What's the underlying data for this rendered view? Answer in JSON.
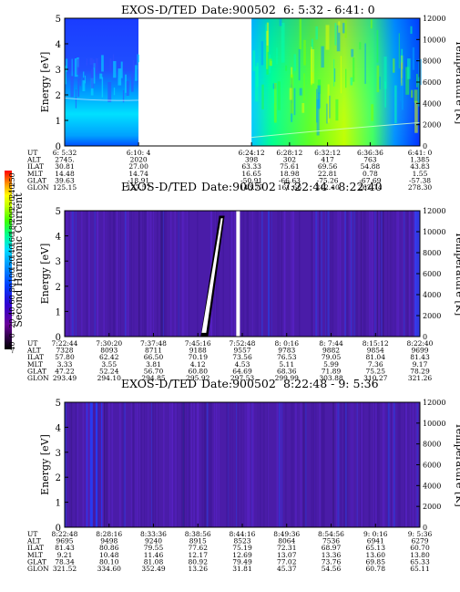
{
  "chart_data": {
    "type": "heatmap",
    "colorbar": {
      "label": "Second Harmonic Current",
      "ticks": [
        "-40",
        "0",
        "20",
        "40",
        "60",
        "80",
        "100",
        "120",
        "140",
        "160",
        "180",
        "200",
        "220",
        "240",
        "250"
      ]
    },
    "panels": [
      {
        "title": "EXOS-D/TED",
        "date": "Date:900502",
        "time_range": "6: 5:32 - 6:41: 0",
        "ylabel": "Energy [eV]",
        "y2label": "Temperature [K]",
        "ylim": [
          0,
          5
        ],
        "y2lim": [
          0,
          12000
        ],
        "yticks": [
          "0",
          "1",
          "2",
          "3",
          "4",
          "5"
        ],
        "y2ticks": [
          "0",
          "2000",
          "4000",
          "6000",
          "8000",
          "10000",
          "12000"
        ],
        "data_gap": {
          "from": "6:10: 4",
          "to": "6:24:12"
        },
        "orbit_labels": [
          "UT",
          "ALT",
          "ILAT",
          "MLT",
          "GLAT",
          "GLON"
        ],
        "orbit_columns": [
          {
            "UT": "6: 5:32",
            "ALT": "2745.",
            "ILAT": "30.81",
            "MLT": "14.48",
            "GLAT": "39.63",
            "GLON": "125.15"
          },
          {
            "UT": "6:10: 4",
            "ALT": "2020",
            "ILAT": "27.00",
            "MLT": "14.74",
            "GLAT": "-18.91",
            "GLON": "127.57"
          },
          {
            "UT": "6:24:12",
            "ALT": "398",
            "ILAT": "63.33",
            "MLT": "16.65",
            "GLAT": "-50.91",
            "GLON": "143.77"
          },
          {
            "UT": "6:28:12",
            "ALT": "302",
            "ILAT": "75.61",
            "MLT": "18.98",
            "GLAT": "-66.63",
            "GLON": "161.66"
          },
          {
            "UT": "6:32:12",
            "ALT": "417",
            "ILAT": "69.56",
            "MLT": "22.81",
            "GLAT": "-75.26",
            "GLON": "212.40"
          },
          {
            "UT": "6:36:36",
            "ALT": "763",
            "ILAT": "54.88",
            "MLT": "0.78",
            "GLAT": "-67.69",
            "GLON": "262.74"
          },
          {
            "UT": "6:41: 0",
            "ALT": "1,385",
            "ILAT": "43.83",
            "MLT": "1.55",
            "GLAT": "-57.38",
            "GLON": "278.30"
          }
        ]
      },
      {
        "title": "EXOS-D/TED",
        "date": "Date:900502",
        "time_range": "7:22:44 - 8:22:40",
        "ylabel": "Energy [eV]",
        "y2label": "Temperature [K]",
        "ylim": [
          0,
          5
        ],
        "y2lim": [
          0,
          12000
        ],
        "yticks": [
          "0",
          "1",
          "2",
          "3",
          "4",
          "5"
        ],
        "y2ticks": [
          "0",
          "2000",
          "4000",
          "6000",
          "8000",
          "10000",
          "12000"
        ],
        "orbit_labels": [
          "UT",
          "ALT",
          "ILAT",
          "MLT",
          "GLAT",
          "GLON"
        ],
        "orbit_columns": [
          {
            "UT": "7:22:44",
            "ALT": "7328",
            "ILAT": "57.80",
            "MLT": "3.33",
            "GLAT": "47.22",
            "GLON": "293.49"
          },
          {
            "UT": "7:30:20",
            "ALT": "8093",
            "ILAT": "62.42",
            "MLT": "3.55",
            "GLAT": "52.24",
            "GLON": "294.10"
          },
          {
            "UT": "7:37:48",
            "ALT": "8711",
            "ILAT": "66.50",
            "MLT": "3.81",
            "GLAT": "56.70",
            "GLON": "294.85"
          },
          {
            "UT": "7:45:16",
            "ALT": "9188",
            "ILAT": "70.19",
            "MLT": "4.12",
            "GLAT": "60.80",
            "GLON": "295.92"
          },
          {
            "UT": "7:52:48",
            "ALT": "9557",
            "ILAT": "73.56",
            "MLT": "4.53",
            "GLAT": "64.69",
            "GLON": "297.53"
          },
          {
            "UT": "8: 0:16",
            "ALT": "9783",
            "ILAT": "76.53",
            "MLT": "5.11",
            "GLAT": "68.36",
            "GLON": "299.99"
          },
          {
            "UT": "8: 7:44",
            "ALT": "9882",
            "ILAT": "79.05",
            "MLT": "5.99",
            "GLAT": "71.89",
            "GLON": "303.88"
          },
          {
            "UT": "8:15:12",
            "ALT": "9854",
            "ILAT": "81.04",
            "MLT": "7.36",
            "GLAT": "75.25",
            "GLON": "310.27"
          },
          {
            "UT": "8:22:40",
            "ALT": "9699",
            "ILAT": "81.43",
            "MLT": "9.17",
            "GLAT": "78.29",
            "GLON": "321.26"
          }
        ]
      },
      {
        "title": "EXOS-D/TED",
        "date": "Date:900502",
        "time_range": "8:22:48 - 9: 5:36",
        "ylabel": "Energy [eV]",
        "y2label": "Temperature [K]",
        "ylim": [
          0,
          5
        ],
        "y2lim": [
          0,
          12000
        ],
        "yticks": [
          "0",
          "1",
          "2",
          "3",
          "4",
          "5"
        ],
        "y2ticks": [
          "0",
          "2000",
          "4000",
          "6000",
          "8000",
          "10000",
          "12000"
        ],
        "orbit_labels": [
          "UT",
          "ALT",
          "ILAT",
          "MLT",
          "GLAT",
          "GLON"
        ],
        "orbit_columns": [
          {
            "UT": "8:22:48",
            "ALT": "9695",
            "ILAT": "81.43",
            "MLT": "9.21",
            "GLAT": "78.34",
            "GLON": "321.52"
          },
          {
            "UT": "8:28:16",
            "ALT": "9498",
            "ILAT": "80.86",
            "MLT": "10.48",
            "GLAT": "80.10",
            "GLON": "334.60"
          },
          {
            "UT": "8:33:36",
            "ALT": "9240",
            "ILAT": "79.55",
            "MLT": "11.46",
            "GLAT": "81.08",
            "GLON": "352.49"
          },
          {
            "UT": "8:38:56",
            "ALT": "8915",
            "ILAT": "77.62",
            "MLT": "12.17",
            "GLAT": "80.92",
            "GLON": "13.26"
          },
          {
            "UT": "8:44:16",
            "ALT": "8523",
            "ILAT": "75.19",
            "MLT": "12.69",
            "GLAT": "79.49",
            "GLON": "31.81"
          },
          {
            "UT": "8:49:36",
            "ALT": "8064",
            "ILAT": "72.31",
            "MLT": "13.07",
            "GLAT": "77.02",
            "GLON": "45.37"
          },
          {
            "UT": "8:54:56",
            "ALT": "7536",
            "ILAT": "68.97",
            "MLT": "13.36",
            "GLAT": "73.76",
            "GLON": "54.56"
          },
          {
            "UT": "9: 0:16",
            "ALT": "6941",
            "ILAT": "65.13",
            "MLT": "13.60",
            "GLAT": "69.85",
            "GLON": "60.78"
          },
          {
            "UT": "9: 5:36",
            "ALT": "6279",
            "ILAT": "60.70",
            "MLT": "13.80",
            "GLAT": "65.33",
            "GLON": "65.11"
          }
        ]
      }
    ]
  }
}
